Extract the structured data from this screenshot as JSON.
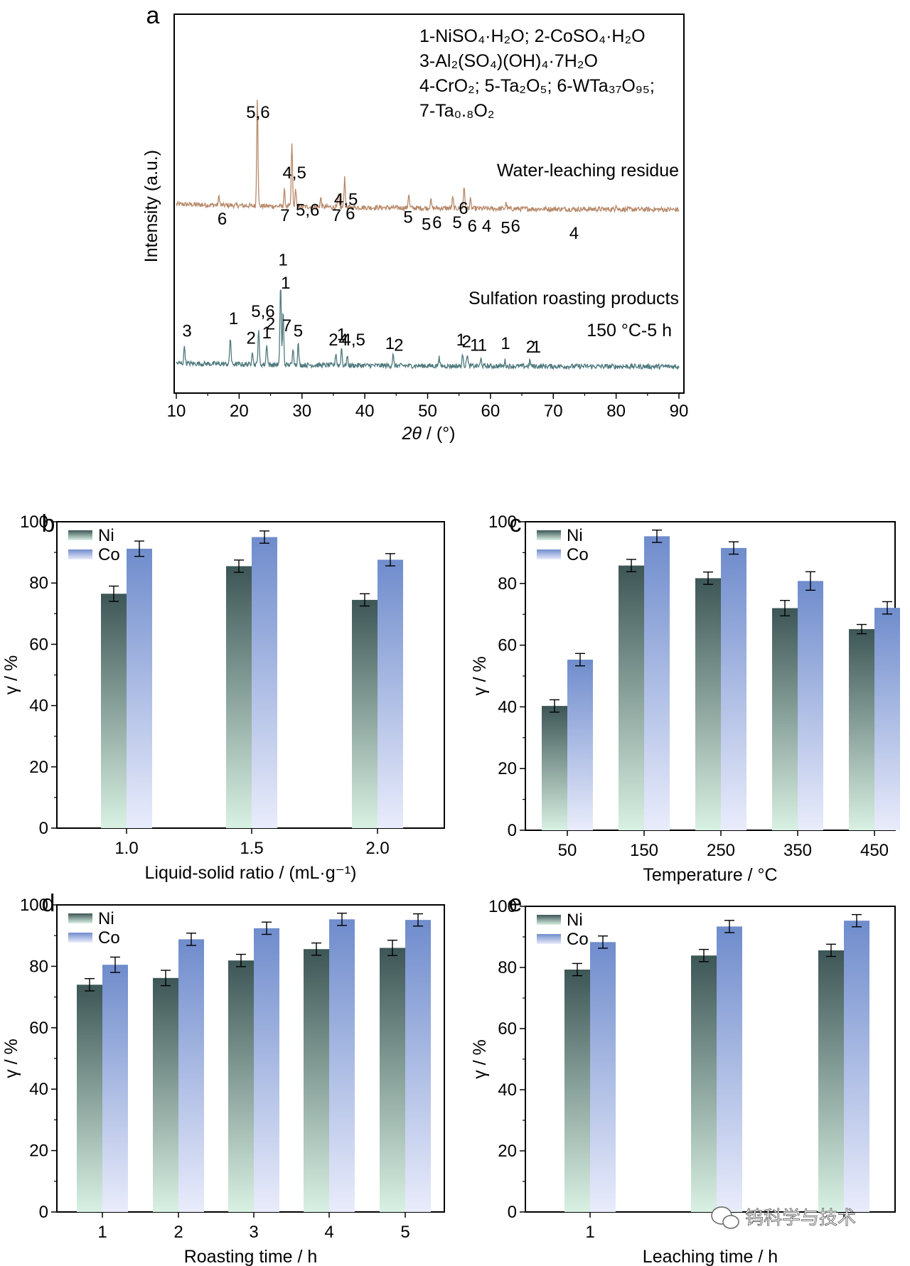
{
  "colors": {
    "residue": "#b8896a",
    "roast": "#4f7a7e",
    "ni_top": "#3d5656",
    "ni_bottom": "#d9f1e3",
    "co_top": "#6f8ccc",
    "co_bottom": "#e9ecfb",
    "axis": "#000000"
  },
  "watermark": {
    "icon": "wechat-icon",
    "text": "钨科学与技术"
  },
  "chart_data": [
    {
      "id": "a",
      "type": "line",
      "panel_label": "a",
      "xlabel_italic": "2θ",
      "xlabel_rest": " / (°)",
      "ylabel": "Intensity (a.u.)",
      "xlim": [
        10,
        90
      ],
      "x_ticks": [
        10,
        20,
        30,
        40,
        50,
        60,
        70,
        80,
        90
      ],
      "legend_lines": [
        "1-NiSO₄·H₂O; 2-CoSO₄·H₂O",
        "3-Al₂(SO₄)(OH)₄·7H₂O",
        "4-CrO₂;  5-Ta₂O₅; 6-WTa₃₇O₉₅;",
        "7-Ta₀.₈O₂"
      ],
      "series": [
        {
          "name": "Water-leaching residue",
          "color_key": "residue",
          "baseline": 0.62,
          "peaks": [
            {
              "x": 16.8,
              "h": 0.05
            },
            {
              "x": 22.9,
              "h": 0.62
            },
            {
              "x": 27.2,
              "h": 0.09
            },
            {
              "x": 28.4,
              "h": 0.36
            },
            {
              "x": 29.0,
              "h": 0.1
            },
            {
              "x": 33.0,
              "h": 0.05
            },
            {
              "x": 35.8,
              "h": 0.07
            },
            {
              "x": 36.8,
              "h": 0.17
            },
            {
              "x": 47.0,
              "h": 0.08
            },
            {
              "x": 50.5,
              "h": 0.05
            },
            {
              "x": 54.0,
              "h": 0.06
            },
            {
              "x": 55.8,
              "h": 0.13
            },
            {
              "x": 56.8,
              "h": 0.05
            },
            {
              "x": 62.5,
              "h": 0.03
            },
            {
              "x": 80.0,
              "h": 0.03
            }
          ],
          "peak_labels": [
            {
              "text": "6",
              "x": 17.3,
              "y": 0.8
            },
            {
              "text": "5,6",
              "x": 23.0,
              "y": 1.4
            },
            {
              "text": "7",
              "x": 27.3,
              "y": 0.82
            },
            {
              "text": "4,5",
              "x": 28.8,
              "y": 1.06
            },
            {
              "text": "5,6",
              "x": 30.9,
              "y": 0.85
            },
            {
              "text": "7",
              "x": 35.5,
              "y": 0.82
            },
            {
              "text": "4,5",
              "x": 37.0,
              "y": 0.91
            },
            {
              "text": "6",
              "x": 37.7,
              "y": 0.83
            },
            {
              "text": "5",
              "x": 46.9,
              "y": 0.81
            },
            {
              "text": "5",
              "x": 49.8,
              "y": 0.77
            },
            {
              "text": "6",
              "x": 51.5,
              "y": 0.78
            },
            {
              "text": "5",
              "x": 54.7,
              "y": 0.78
            },
            {
              "text": "6",
              "x": 55.7,
              "y": 0.86
            },
            {
              "text": "6",
              "x": 57.1,
              "y": 0.76
            },
            {
              "text": "4",
              "x": 59.4,
              "y": 0.76
            },
            {
              "text": "5",
              "x": 62.4,
              "y": 0.75
            },
            {
              "text": "6",
              "x": 64.0,
              "y": 0.76
            },
            {
              "text": "4",
              "x": 73.3,
              "y": 0.72
            }
          ],
          "annotations": [
            "Water-leaching residue"
          ]
        },
        {
          "name": "Sulfation roasting products",
          "color_key": "roast",
          "baseline": 0.0,
          "peaks": [
            {
              "x": 11.3,
              "h": 0.1
            },
            {
              "x": 18.6,
              "h": 0.15
            },
            {
              "x": 22.1,
              "h": 0.08
            },
            {
              "x": 23.1,
              "h": 0.2
            },
            {
              "x": 24.4,
              "h": 0.12
            },
            {
              "x": 26.6,
              "h": 0.46
            },
            {
              "x": 27.0,
              "h": 0.3
            },
            {
              "x": 28.6,
              "h": 0.1
            },
            {
              "x": 29.4,
              "h": 0.12
            },
            {
              "x": 35.4,
              "h": 0.07
            },
            {
              "x": 36.3,
              "h": 0.1
            },
            {
              "x": 37.2,
              "h": 0.05
            },
            {
              "x": 44.5,
              "h": 0.06
            },
            {
              "x": 51.8,
              "h": 0.05
            },
            {
              "x": 55.6,
              "h": 0.07
            },
            {
              "x": 56.3,
              "h": 0.07
            },
            {
              "x": 58.5,
              "h": 0.04
            },
            {
              "x": 62.3,
              "h": 0.03
            },
            {
              "x": 66.3,
              "h": 0.03
            }
          ],
          "peak_labels": [
            {
              "text": "3",
              "x": 11.7,
              "y": 0.17
            },
            {
              "text": "1",
              "x": 19.1,
              "y": 0.24
            },
            {
              "text": "2",
              "x": 21.9,
              "y": 0.13
            },
            {
              "text": "5,6",
              "x": 23.8,
              "y": 0.28
            },
            {
              "text": "1",
              "x": 24.4,
              "y": 0.16
            },
            {
              "text": "2",
              "x": 25.0,
              "y": 0.21
            },
            {
              "text": "1",
              "x": 27.0,
              "y": 0.57
            },
            {
              "text": "1",
              "x": 27.4,
              "y": 0.44
            },
            {
              "text": "7",
              "x": 27.6,
              "y": 0.2
            },
            {
              "text": "5",
              "x": 29.4,
              "y": 0.17
            },
            {
              "text": "2",
              "x": 35.0,
              "y": 0.12
            },
            {
              "text": "1",
              "x": 36.3,
              "y": 0.15
            },
            {
              "text": "4",
              "x": 36.6,
              "y": 0.12
            },
            {
              "text": "4,5",
              "x": 38.2,
              "y": 0.12
            },
            {
              "text": "1",
              "x": 44.0,
              "y": 0.1
            },
            {
              "text": "2",
              "x": 45.4,
              "y": 0.09
            },
            {
              "text": "1",
              "x": 55.3,
              "y": 0.12
            },
            {
              "text": "2",
              "x": 56.2,
              "y": 0.11
            },
            {
              "text": "1",
              "x": 57.5,
              "y": 0.09
            },
            {
              "text": "1",
              "x": 58.7,
              "y": 0.09
            },
            {
              "text": "1",
              "x": 62.4,
              "y": 0.1
            },
            {
              "text": "2",
              "x": 66.4,
              "y": 0.08
            },
            {
              "text": "1",
              "x": 67.3,
              "y": 0.08
            }
          ],
          "annotations": [
            "Sulfation roasting products",
            "150 °C-5 h"
          ]
        }
      ]
    },
    {
      "id": "b",
      "type": "bar",
      "panel_label": "b",
      "categories": [
        "1.0",
        "1.5",
        "2.0"
      ],
      "xlabel": "Liquid-solid ratio / (mL·g⁻¹)",
      "ylabel": "γ / %",
      "ylim": [
        0,
        100
      ],
      "y_ticks": [
        0,
        20,
        40,
        60,
        80,
        100
      ],
      "series": [
        {
          "name": "Ni",
          "values": [
            76.5,
            85.5,
            74.5
          ],
          "errors": [
            2.5,
            2.0,
            2.0
          ]
        },
        {
          "name": "Co",
          "values": [
            91.2,
            95.0,
            87.6
          ],
          "errors": [
            2.5,
            2.0,
            2.0
          ]
        }
      ]
    },
    {
      "id": "c",
      "type": "bar",
      "panel_label": "c",
      "categories": [
        "50",
        "150",
        "250",
        "350",
        "450"
      ],
      "xlabel": "Temperature / °C",
      "ylabel": "γ / %",
      "ylim": [
        0,
        100
      ],
      "y_ticks": [
        0,
        20,
        40,
        60,
        80,
        100
      ],
      "series": [
        {
          "name": "Ni",
          "values": [
            40.3,
            85.8,
            81.7,
            72.0,
            65.2
          ],
          "errors": [
            2.0,
            2.0,
            2.0,
            2.5,
            1.5
          ]
        },
        {
          "name": "Co",
          "values": [
            55.3,
            95.3,
            91.5,
            80.8,
            72.1
          ],
          "errors": [
            2.0,
            2.0,
            2.0,
            3.0,
            2.0
          ]
        }
      ]
    },
    {
      "id": "d",
      "type": "bar",
      "panel_label": "d",
      "categories": [
        "1",
        "2",
        "3",
        "4",
        "5"
      ],
      "xlabel": "Roasting time / h",
      "ylabel": "γ / %",
      "ylim": [
        0,
        100
      ],
      "y_ticks": [
        0,
        20,
        40,
        60,
        80,
        100
      ],
      "series": [
        {
          "name": "Ni",
          "values": [
            74.0,
            76.2,
            81.9,
            85.6,
            86.0
          ],
          "errors": [
            2.0,
            2.5,
            2.0,
            2.0,
            2.5
          ]
        },
        {
          "name": "Co",
          "values": [
            80.5,
            88.8,
            92.4,
            95.3,
            95.1
          ],
          "errors": [
            2.5,
            2.0,
            2.0,
            2.0,
            2.0
          ]
        }
      ]
    },
    {
      "id": "e",
      "type": "bar",
      "panel_label": "e",
      "categories": [
        "1",
        "",
        ""
      ],
      "xlabel": "Leaching time / h",
      "ylabel": "γ / %",
      "ylim": [
        0,
        100
      ],
      "y_ticks": [
        0,
        20,
        40,
        60,
        80,
        100
      ],
      "series": [
        {
          "name": "Ni",
          "values": [
            79.3,
            83.9,
            85.6
          ],
          "errors": [
            2.0,
            2.0,
            2.0
          ]
        },
        {
          "name": "Co",
          "values": [
            88.3,
            93.4,
            95.3
          ],
          "errors": [
            2.0,
            2.0,
            2.0
          ]
        }
      ]
    }
  ]
}
